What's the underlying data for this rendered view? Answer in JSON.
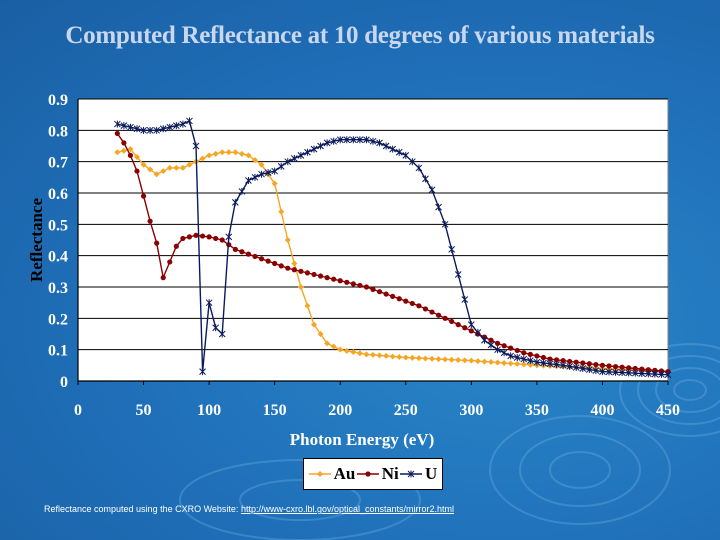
{
  "slide": {
    "title": "Computed Reflectance at 10 degrees of various materials",
    "footer_text": "Reflectance computed using the CXRO Website: ",
    "footer_link": "http://www-cxro.lbl.gov/optical_constants/mirror2.html"
  },
  "colors": {
    "background": "#1f6fb8",
    "title": "#c9d7ee",
    "plot_area": "#ffffff",
    "Au": "#f5a623",
    "Ni": "#8b0000",
    "U": "#0a1a5c"
  },
  "chart_data": {
    "type": "line",
    "title": "Computed Reflectance at 10 degrees of various materials",
    "xlabel": "Photon Energy (eV)",
    "ylabel": "Reflectance",
    "xlim": [
      0,
      450
    ],
    "ylim": [
      0,
      0.9
    ],
    "xticks": [
      "0",
      "50",
      "100",
      "150",
      "200",
      "250",
      "300",
      "350",
      "400",
      "450"
    ],
    "yticks": [
      "0",
      "0.1",
      "0.2",
      "0.3",
      "0.4",
      "0.5",
      "0.6",
      "0.7",
      "0.8",
      "0.9"
    ],
    "grid": "horizontal",
    "legend_position": "bottom",
    "series": [
      {
        "name": "Au",
        "marker": "diamond",
        "points": [
          [
            30,
            0.73
          ],
          [
            40,
            0.74
          ],
          [
            50,
            0.69
          ],
          [
            60,
            0.66
          ],
          [
            70,
            0.68
          ],
          [
            80,
            0.68
          ],
          [
            90,
            0.7
          ],
          [
            100,
            0.72
          ],
          [
            110,
            0.73
          ],
          [
            120,
            0.73
          ],
          [
            130,
            0.72
          ],
          [
            140,
            0.69
          ],
          [
            150,
            0.63
          ],
          [
            160,
            0.45
          ],
          [
            170,
            0.3
          ],
          [
            180,
            0.18
          ],
          [
            190,
            0.12
          ],
          [
            200,
            0.1
          ],
          [
            220,
            0.085
          ],
          [
            250,
            0.075
          ],
          [
            300,
            0.065
          ],
          [
            350,
            0.05
          ],
          [
            400,
            0.04
          ],
          [
            450,
            0.03
          ]
        ]
      },
      {
        "name": "Ni",
        "marker": "circle",
        "points": [
          [
            30,
            0.79
          ],
          [
            35,
            0.76
          ],
          [
            40,
            0.72
          ],
          [
            45,
            0.67
          ],
          [
            50,
            0.59
          ],
          [
            55,
            0.51
          ],
          [
            60,
            0.44
          ],
          [
            65,
            0.33
          ],
          [
            70,
            0.38
          ],
          [
            75,
            0.43
          ],
          [
            80,
            0.455
          ],
          [
            90,
            0.465
          ],
          [
            100,
            0.46
          ],
          [
            110,
            0.45
          ],
          [
            120,
            0.42
          ],
          [
            140,
            0.39
          ],
          [
            160,
            0.36
          ],
          [
            180,
            0.34
          ],
          [
            200,
            0.32
          ],
          [
            220,
            0.3
          ],
          [
            240,
            0.27
          ],
          [
            260,
            0.24
          ],
          [
            280,
            0.2
          ],
          [
            300,
            0.16
          ],
          [
            320,
            0.12
          ],
          [
            340,
            0.09
          ],
          [
            360,
            0.07
          ],
          [
            380,
            0.06
          ],
          [
            400,
            0.05
          ],
          [
            425,
            0.04
          ],
          [
            450,
            0.03
          ]
        ]
      },
      {
        "name": "U",
        "marker": "star",
        "points": [
          [
            30,
            0.82
          ],
          [
            40,
            0.81
          ],
          [
            50,
            0.8
          ],
          [
            60,
            0.8
          ],
          [
            70,
            0.81
          ],
          [
            80,
            0.82
          ],
          [
            85,
            0.83
          ],
          [
            90,
            0.75
          ],
          [
            95,
            0.03
          ],
          [
            100,
            0.25
          ],
          [
            105,
            0.17
          ],
          [
            110,
            0.15
          ],
          [
            115,
            0.46
          ],
          [
            120,
            0.57
          ],
          [
            130,
            0.64
          ],
          [
            140,
            0.66
          ],
          [
            150,
            0.67
          ],
          [
            160,
            0.7
          ],
          [
            170,
            0.72
          ],
          [
            180,
            0.74
          ],
          [
            190,
            0.76
          ],
          [
            200,
            0.77
          ],
          [
            210,
            0.77
          ],
          [
            220,
            0.77
          ],
          [
            230,
            0.76
          ],
          [
            240,
            0.74
          ],
          [
            250,
            0.72
          ],
          [
            260,
            0.68
          ],
          [
            270,
            0.61
          ],
          [
            280,
            0.5
          ],
          [
            290,
            0.34
          ],
          [
            300,
            0.18
          ],
          [
            310,
            0.13
          ],
          [
            320,
            0.1
          ],
          [
            330,
            0.08
          ],
          [
            340,
            0.07
          ],
          [
            350,
            0.06
          ],
          [
            370,
            0.05
          ],
          [
            400,
            0.03
          ],
          [
            450,
            0.02
          ]
        ]
      }
    ]
  }
}
